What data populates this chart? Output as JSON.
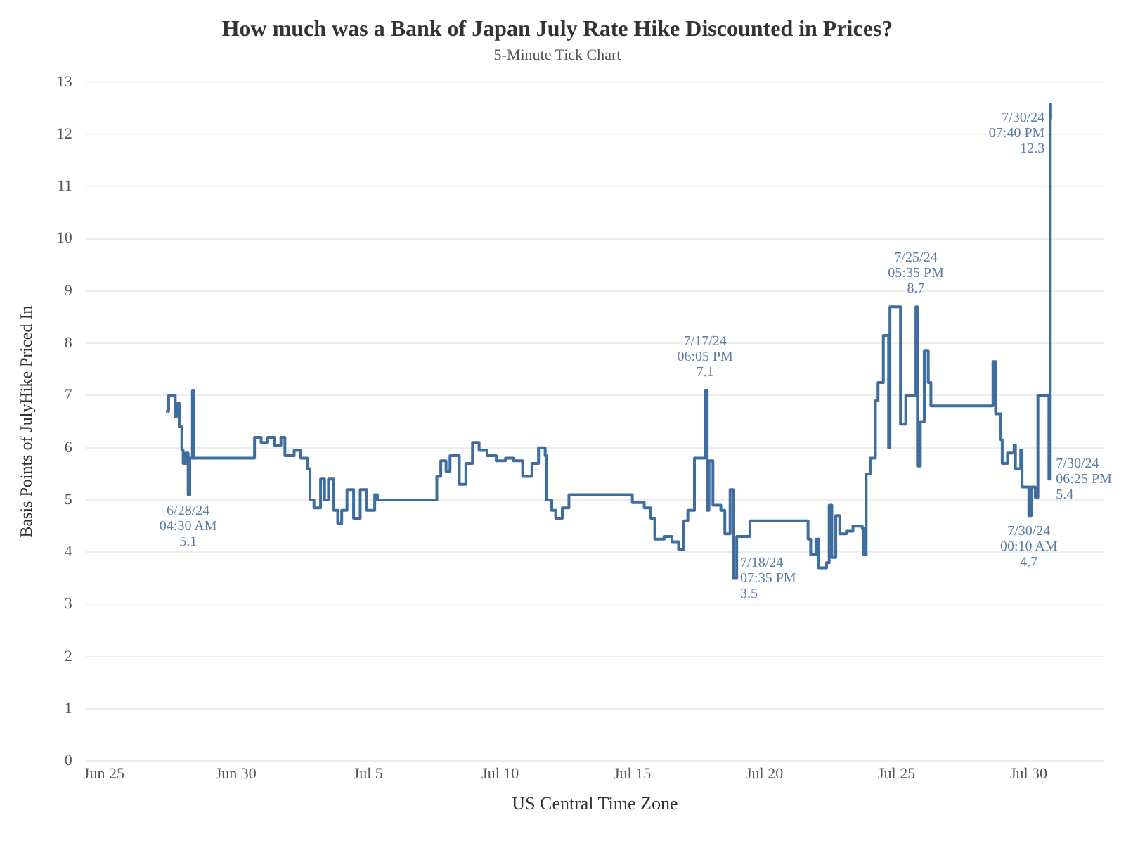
{
  "chart_data": {
    "type": "step",
    "title": "How much was a Bank of Japan July Rate Hike Discounted in Prices?",
    "subtitle": "5-Minute Tick Chart",
    "xlabel": "US Central Time Zone",
    "ylabel": "Basis Points of JulyHike Priced In",
    "xlim": [
      "--06-24T08:00",
      "--08-01T20:00"
    ],
    "xticks": [
      {
        "value": "--06-25",
        "label": "Jun 25"
      },
      {
        "value": "--06-30",
        "label": "Jun 30"
      },
      {
        "value": "--07-05",
        "label": "Jul 5"
      },
      {
        "value": "--07-10",
        "label": "Jul 10"
      },
      {
        "value": "--07-15",
        "label": "Jul 15"
      },
      {
        "value": "--07-20",
        "label": "Jul 20"
      },
      {
        "value": "--07-25",
        "label": "Jul 25"
      },
      {
        "value": "--07-30",
        "label": "Jul 30"
      }
    ],
    "ylim": [
      0,
      13
    ],
    "yticks": [
      0,
      1,
      2,
      3,
      4,
      5,
      6,
      7,
      8,
      9,
      10,
      11,
      12,
      13
    ],
    "grid": "y",
    "legend": false,
    "marker": "none",
    "series": [
      {
        "color": "#3f6d9f",
        "x": [
          "--06-27T08:24",
          "--06-27T10:48",
          "--06-27T16:48",
          "--06-27T18:00",
          "--06-27T20:24",
          "--06-27T22:48",
          "--06-28T00:00",
          "--06-28T02:24",
          "--06-28T04:30",
          "--06-28T06:00",
          "--06-28T08:24",
          "--06-28T09:36",
          "--06-30T16:48",
          "--06-30T22:48",
          "--07-01T04:48",
          "--07-01T10:48",
          "--07-01T16:48",
          "--07-01T20:24",
          "--07-02T04:48",
          "--07-02T10:48",
          "--07-02T16:48",
          "--07-02T19:12",
          "--07-02T22:48",
          "--07-03T04:48",
          "--07-03T08:24",
          "--07-03T12:00",
          "--07-03T16:48",
          "--07-03T20:24",
          "--07-04T00:00",
          "--07-04T04:48",
          "--07-04T10:48",
          "--07-04T16:48",
          "--07-04T22:48",
          "--07-05T06:00",
          "--07-05T08:24",
          "--07-07T14:24",
          "--07-07T18:00",
          "--07-07T22:48",
          "--07-08T02:24",
          "--07-08T10:48",
          "--07-08T16:48",
          "--07-08T22:48",
          "--07-09T04:48",
          "--07-09T12:00",
          "--07-09T20:24",
          "--07-10T04:48",
          "--07-10T12:00",
          "--07-10T20:24",
          "--07-11T04:48",
          "--07-11T10:48",
          "--07-11T16:48",
          "--07-11T18:00",
          "--07-11T22:48",
          "--07-12T02:24",
          "--07-12T08:24",
          "--07-12T14:24",
          "--07-15T00:00",
          "--07-15T10:48",
          "--07-15T16:48",
          "--07-15T20:24",
          "--07-16T04:48",
          "--07-16T12:00",
          "--07-16T18:00",
          "--07-16T22:48",
          "--07-17T02:24",
          "--07-17T08:24",
          "--07-17T18:05",
          "--07-17T20:00",
          "--07-17T21:36",
          "--07-18T01:12",
          "--07-18T08:24",
          "--07-18T12:00",
          "--07-18T16:48",
          "--07-18T19:35",
          "--07-18T22:48",
          "--07-19T10:48",
          "--07-21T15:36",
          "--07-21T18:00",
          "--07-21T22:48",
          "--07-22T01:12",
          "--07-22T08:24",
          "--07-22T10:48",
          "--07-22T13:12",
          "--07-22T16:48",
          "--07-22T20:24",
          "--07-23T02:24",
          "--07-23T08:24",
          "--07-23T16:48",
          "--07-23T18:00",
          "--07-23T20:24",
          "--07-24T00:00",
          "--07-24T04:48",
          "--07-24T07:12",
          "--07-24T12:00",
          "--07-24T16:48",
          "--07-24T18:00",
          "--07-25T03:36",
          "--07-25T08:24",
          "--07-25T17:35",
          "--07-25T19:00",
          "--07-25T21:36",
          "--07-26T01:12",
          "--07-26T04:48",
          "--07-26T07:12",
          "--07-28T15:36",
          "--07-28T18:00",
          "--07-28T22:48",
          "--07-29T00:00",
          "--07-29T04:48",
          "--07-29T10:48",
          "--07-29T12:00",
          "--07-29T16:48",
          "--07-29T18:00",
          "--07-30T00:10",
          "--07-30T02:24",
          "--07-30T06:00",
          "--07-30T08:24",
          "--07-30T18:25",
          "--07-30T19:40",
          "--07-30T20:00"
        ],
        "values": [
          6.7,
          7.0,
          6.6,
          6.85,
          6.4,
          5.95,
          5.7,
          5.9,
          5.1,
          5.8,
          7.1,
          5.8,
          6.2,
          6.1,
          6.2,
          6.05,
          6.2,
          5.85,
          5.95,
          5.8,
          5.6,
          5.0,
          4.85,
          5.4,
          5.0,
          5.4,
          4.8,
          4.55,
          4.8,
          5.2,
          4.65,
          5.2,
          4.8,
          5.1,
          5.0,
          5.45,
          5.75,
          5.55,
          5.85,
          5.3,
          5.7,
          6.1,
          5.95,
          5.85,
          5.75,
          5.8,
          5.75,
          5.45,
          5.7,
          6.0,
          5.85,
          5.0,
          4.8,
          4.65,
          4.85,
          5.1,
          4.95,
          4.85,
          4.65,
          4.25,
          4.3,
          4.2,
          4.05,
          4.6,
          4.8,
          5.8,
          7.1,
          4.8,
          5.75,
          4.9,
          4.8,
          4.35,
          5.2,
          3.5,
          4.3,
          4.6,
          4.25,
          3.95,
          4.25,
          3.7,
          3.8,
          4.9,
          3.9,
          4.7,
          4.35,
          4.4,
          4.5,
          4.45,
          3.95,
          5.5,
          5.8,
          6.9,
          7.25,
          8.15,
          6.0,
          8.7,
          6.45,
          7.0,
          8.7,
          5.65,
          6.5,
          7.85,
          7.25,
          6.8,
          7.65,
          6.65,
          6.15,
          5.7,
          5.9,
          6.05,
          5.6,
          5.95,
          5.25,
          4.7,
          5.25,
          5.05,
          7.0,
          5.4,
          12.3,
          12.6
        ]
      }
    ],
    "annotations": [
      {
        "text": "6/28/24\n04:30 AM\n5.1",
        "x": "--06-28T04:30",
        "y": 5.1
      },
      {
        "text": "7/17/24\n06:05 PM\n7.1",
        "x": "--07-17T18:05",
        "y": 7.1
      },
      {
        "text": "7/18/24\n07:35 PM\n3.5",
        "x": "--07-18T19:35",
        "y": 3.5
      },
      {
        "text": "7/25/24\n05:35 PM\n8.7",
        "x": "--07-25T17:35",
        "y": 8.7
      },
      {
        "text": "7/30/24\n00:10 AM\n4.7",
        "x": "--07-30T00:10",
        "y": 4.7
      },
      {
        "text": "7/30/24\n06:25 PM\n5.4",
        "x": "--07-30T18:25",
        "y": 5.4
      },
      {
        "text": "7/30/24\n07:40 PM\n12.3",
        "x": "--07-30T19:40",
        "y": 12.3
      }
    ]
  }
}
